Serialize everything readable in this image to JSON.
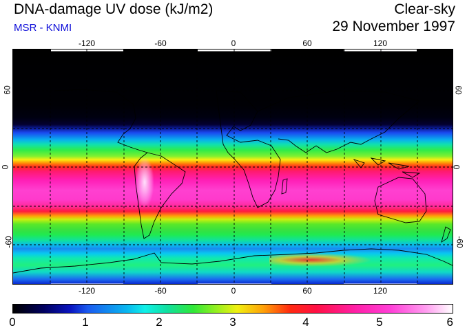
{
  "header": {
    "title": "DNA-damage UV dose (kJ/m2)",
    "subtitle": "MSR - KNMI",
    "condition": "Clear-sky",
    "date": "29 November 1997"
  },
  "map": {
    "x_ticks_top": [
      "-120",
      "-60",
      "0",
      "60",
      "120"
    ],
    "x_ticks_bottom": [
      "-120",
      "-60",
      "0",
      "60",
      "120"
    ],
    "y_ticks_left": [
      "60",
      "0",
      "-60"
    ],
    "y_ticks_right": [
      "60",
      "0",
      "-60"
    ]
  },
  "colorbar": {
    "labels": [
      "0",
      "1",
      "2",
      "3",
      "4",
      "5",
      "6"
    ],
    "min": 0,
    "max": 6,
    "units": "kJ/m2"
  }
}
